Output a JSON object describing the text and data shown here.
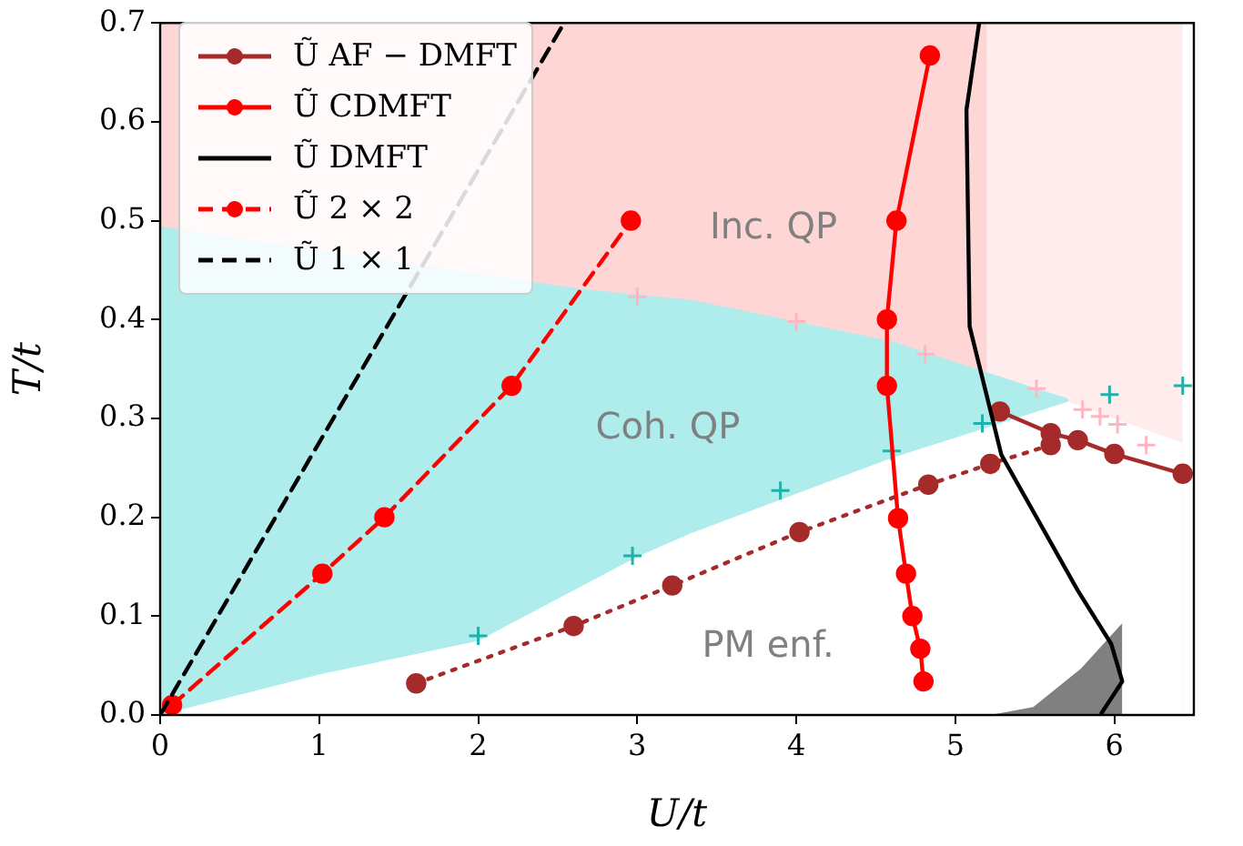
{
  "chart_data": {
    "type": "line",
    "xlabel": "U/t",
    "ylabel": "T/t",
    "xlim": [
      0,
      6.5
    ],
    "xticks": [
      0,
      1,
      2,
      3,
      4,
      5,
      6
    ],
    "ylim": [
      0,
      0.7
    ],
    "yticks": [
      {
        "value": 0,
        "label": "0.0"
      },
      {
        "value": 0.1,
        "label": "0.1"
      },
      {
        "value": 0.2,
        "label": "0.2"
      },
      {
        "value": 0.3,
        "label": "0.3"
      },
      {
        "value": 0.4,
        "label": "0.4"
      },
      {
        "value": 0.5,
        "label": "0.5"
      },
      {
        "value": 0.6,
        "label": "0.6"
      },
      {
        "value": 0.7,
        "label": "0.7"
      }
    ],
    "grid": false,
    "legend": "top left",
    "series": [
      {
        "type": "area",
        "color": "#ffd6d6",
        "x": [
          0,
          5.2
        ],
        "values": [
          0.7,
          0.7
        ]
      },
      {
        "type": "area",
        "color": "#ffecec",
        "x": [
          5.2,
          6.43
        ],
        "values": [
          0.7,
          0.7
        ]
      },
      {
        "type": "area",
        "color": "#afecec",
        "x": [
          0,
          2.6,
          3,
          3.34,
          4.6,
          5.71
        ],
        "values": [
          0.494,
          0.432,
          0.425,
          0.42,
          0.378,
          0.32
        ]
      },
      {
        "type": "area",
        "color": "#ffffff",
        "x": [
          0,
          1,
          2,
          3,
          3.34,
          4.6,
          5.71,
          6.0,
          6.43
        ],
        "values": [
          0,
          0.041,
          0.075,
          0.16,
          0.184,
          0.26,
          0.317,
          0.3,
          0.275
        ]
      },
      {
        "type": "area",
        "color": "#808080",
        "x": [
          5.22,
          5.49,
          5.79,
          6.05
        ],
        "values": [
          0,
          0.008,
          0.047,
          0.093
        ]
      },
      {
        "type": "scatter",
        "color": "#ffb6c1",
        "marker": "cross",
        "x": [
          3.0,
          4.0,
          4.81,
          5.51,
          5.8,
          5.91,
          6.02,
          6.2
        ],
        "values": [
          0.423,
          0.398,
          0.365,
          0.33,
          0.309,
          0.302,
          0.294,
          0.273
        ]
      },
      {
        "type": "scatter",
        "color": "#20b2aa",
        "marker": "cross",
        "x": [
          2.0,
          2.97,
          3.9,
          4.6,
          5.17,
          5.97,
          6.43
        ],
        "values": [
          0.08,
          0.161,
          0.227,
          0.267,
          0.295,
          0.324,
          0.333
        ]
      },
      {
        "color": "#a52a2a",
        "marker": "circle",
        "line_style": "dotted",
        "x": [
          1.61,
          2.6,
          3.22,
          4.02,
          4.83,
          5.22,
          5.6
        ],
        "values": [
          0.032,
          0.09,
          0.131,
          0.185,
          0.233,
          0.254,
          0.273
        ]
      },
      {
        "name": "Ũ AF − DMFT",
        "color": "#a52a2a",
        "marker": "circle",
        "line_style": "solid",
        "x": [
          5.28,
          5.6,
          5.77,
          6.0,
          6.43
        ],
        "values": [
          0.307,
          0.285,
          0.278,
          0.264,
          0.244
        ]
      },
      {
        "name": "Ũ CDMFT",
        "color": "#ff0000",
        "marker": "circle",
        "line_style": "solid",
        "x": [
          4.84,
          4.63,
          4.57,
          4.57,
          4.64,
          4.69,
          4.73,
          4.78,
          4.8
        ],
        "values": [
          0.667,
          0.5,
          0.4,
          0.333,
          0.199,
          0.143,
          0.1,
          0.067,
          0.034
        ]
      },
      {
        "name": "Ũ DMFT",
        "color": "#000000",
        "marker": "none",
        "line_style": "solid",
        "x": [
          5.15,
          5.07,
          5.09,
          5.29,
          5.77,
          5.98,
          6.05,
          5.92
        ],
        "values": [
          0.7,
          0.612,
          0.393,
          0.263,
          0.126,
          0.072,
          0.034,
          0.002
        ]
      },
      {
        "name": "Ũ 2 × 2",
        "color": "#ff0000",
        "marker": "circle",
        "line_style": "dashed",
        "x": [
          0.075,
          1.02,
          1.41,
          2.21,
          2.96
        ],
        "values": [
          0.01,
          0.143,
          0.2,
          0.333,
          0.5
        ]
      },
      {
        "name": "Ũ 1 × 1",
        "color": "#000000",
        "marker": "none",
        "line_style": "dashed",
        "x": [
          0,
          2.54
        ],
        "values": [
          0,
          0.7
        ]
      }
    ],
    "annotations": [
      "Inc. QP",
      "Coh. QP",
      "PM enf."
    ]
  }
}
